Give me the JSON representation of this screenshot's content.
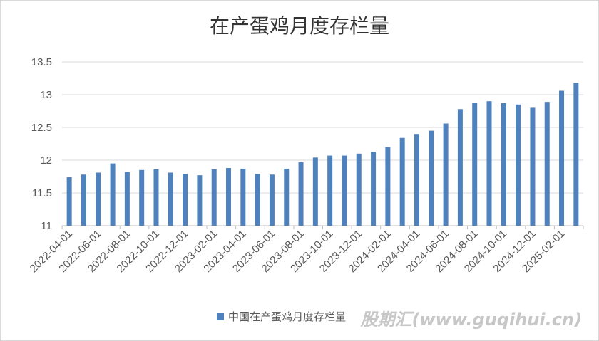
{
  "chart_data": {
    "type": "bar",
    "title": "在产蛋鸡月度存栏量",
    "xlabel": "",
    "ylabel": "",
    "ylim": [
      11,
      13.5
    ],
    "yticks": [
      11,
      11.5,
      12,
      12.5,
      13,
      13.5
    ],
    "ytick_labels": [
      "11",
      "11.5",
      "12",
      "12.5",
      "13",
      "13.5"
    ],
    "gridlines": true,
    "legend_position": "bottom",
    "color": "#4f81bd",
    "categories": [
      "2022-04-01",
      "2022-05-01",
      "2022-06-01",
      "2022-07-01",
      "2022-08-01",
      "2022-09-01",
      "2022-10-01",
      "2022-11-01",
      "2022-12-01",
      "2023-01-01",
      "2023-02-01",
      "2023-03-01",
      "2023-04-01",
      "2023-05-01",
      "2023-06-01",
      "2023-07-01",
      "2023-08-01",
      "2023-09-01",
      "2023-10-01",
      "2023-11-01",
      "2023-12-01",
      "2024-01-01",
      "2024-02-01",
      "2024-03-01",
      "2024-04-01",
      "2024-05-01",
      "2024-06-01",
      "2024-07-01",
      "2024-08-01",
      "2024-09-01",
      "2024-10-01",
      "2024-11-01",
      "2024-12-01",
      "2025-01-01",
      "2025-02-01",
      "2025-03-01"
    ],
    "visible_tick_labels": [
      "2022-04-01",
      "2022-06-01",
      "2022-08-01",
      "2022-10-01",
      "2022-12-01",
      "2023-02-01",
      "2023-04-01",
      "2023-06-01",
      "2023-08-01",
      "2023-10-01",
      "2023-12-01",
      "2024-02-01",
      "2024-04-01",
      "2024-06-01",
      "2024-08-01",
      "2024-10-01",
      "2024-12-01",
      "2025-02-01"
    ],
    "series": [
      {
        "name": "中国在产蛋鸡月度存栏量",
        "values": [
          11.74,
          11.78,
          11.81,
          11.95,
          11.82,
          11.85,
          11.86,
          11.81,
          11.79,
          11.77,
          11.86,
          11.88,
          11.87,
          11.79,
          11.78,
          11.87,
          11.97,
          12.04,
          12.07,
          12.07,
          12.1,
          12.13,
          12.2,
          12.34,
          12.4,
          12.45,
          12.56,
          12.78,
          12.88,
          12.9,
          12.87,
          12.85,
          12.8,
          12.89,
          13.06,
          13.18
        ]
      }
    ]
  },
  "watermark": "股期汇(www.guqihui.cn)"
}
